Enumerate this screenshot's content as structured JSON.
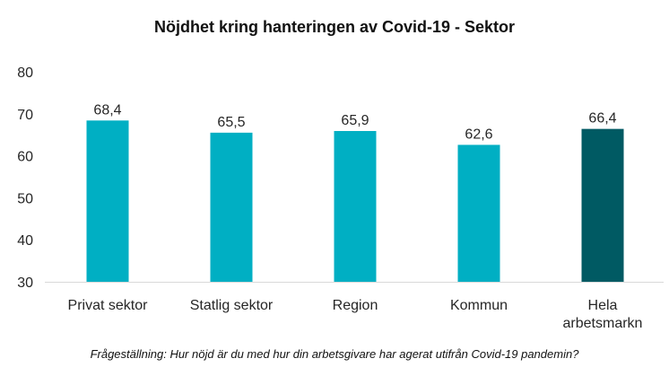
{
  "chart_data": {
    "type": "bar",
    "title": "Nöjdhet kring hanteringen av Covid-19 - Sektor",
    "categories": [
      [
        "Privat sektor"
      ],
      [
        "Statlig sektor"
      ],
      [
        "Region"
      ],
      [
        "Kommun"
      ],
      [
        "Hela",
        "arbetsmarkn"
      ]
    ],
    "values": [
      68.4,
      65.5,
      65.9,
      62.6,
      66.4
    ],
    "value_labels": [
      "68,4",
      "65,5",
      "65,9",
      "62,6",
      "66,4"
    ],
    "bar_colors": [
      "#00AFC3",
      "#00AFC3",
      "#00AFC3",
      "#00AFC3",
      "#005A63"
    ],
    "ylim": [
      30,
      80
    ],
    "yticks": [
      30,
      40,
      50,
      60,
      70,
      80
    ],
    "grid": false,
    "legend": "none",
    "footnote": "Frågeställning: Hur nöjd är du med hur din arbetsgivare har agerat utifrån Covid-19 pandemin?"
  }
}
